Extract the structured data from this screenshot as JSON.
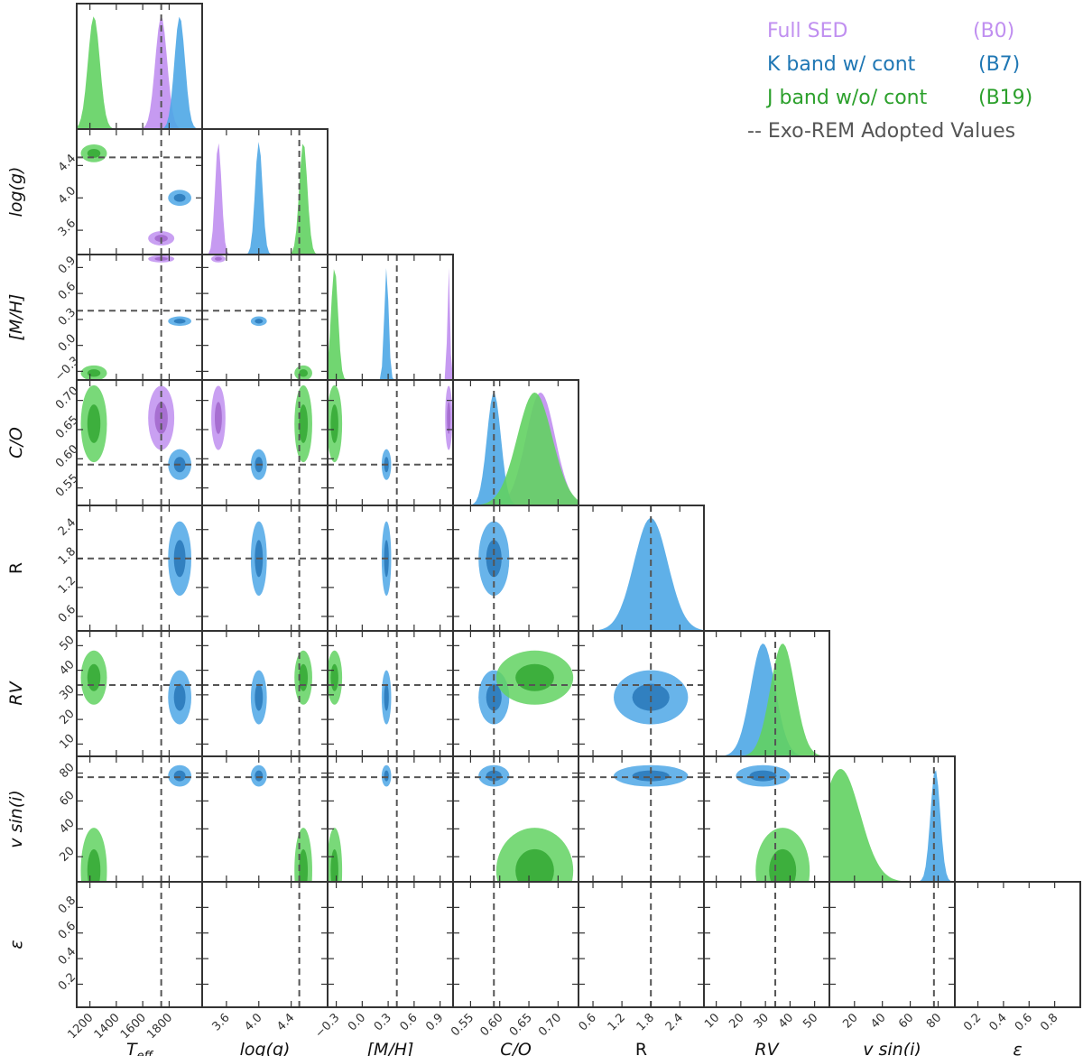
{
  "chart_data": {
    "type": "corner",
    "parameters": [
      {
        "key": "teff",
        "label": "T",
        "label_sub": "eff",
        "range": [
          1100,
          2050
        ],
        "ticks": [
          1200,
          1400,
          1600,
          1800
        ],
        "tick_labels": [
          "1200",
          "1400",
          "1600",
          "1800"
        ],
        "adopted": 1740,
        "y_ticks": [],
        "y_tick_labels": []
      },
      {
        "key": "logg",
        "label": "log(g)",
        "range": [
          3.3,
          4.85
        ],
        "ticks": [
          3.6,
          4.0,
          4.4
        ],
        "tick_labels": [
          "3.6",
          "4.0",
          "4.4"
        ],
        "adopted": 4.5,
        "y_ticks": [
          3.6,
          4.0,
          4.4
        ],
        "y_tick_labels": [
          "3.6",
          "4.0",
          "4.4"
        ]
      },
      {
        "key": "mh",
        "label": "[M/H]",
        "range": [
          -0.4,
          1.05
        ],
        "ticks": [
          -0.3,
          0.0,
          0.3,
          0.6,
          0.9
        ],
        "tick_labels": [
          "−0.3",
          "0.0",
          "0.3",
          "0.6",
          "0.9"
        ],
        "adopted": 0.4,
        "y_ticks": [
          -0.3,
          0.0,
          0.3,
          0.6,
          0.9
        ],
        "y_tick_labels": [
          "−0.3",
          "0.0",
          "0.3",
          "0.6",
          "0.9"
        ]
      },
      {
        "key": "co",
        "label": "C/O",
        "range": [
          0.52,
          0.735
        ],
        "ticks": [
          0.55,
          0.6,
          0.65,
          0.7
        ],
        "tick_labels": [
          "0.55",
          "0.60",
          "0.65",
          "0.70"
        ],
        "adopted": 0.59,
        "y_ticks": [
          0.55,
          0.6,
          0.65,
          0.7
        ],
        "y_tick_labels": [
          "0.55",
          "0.60",
          "0.65",
          "0.70"
        ]
      },
      {
        "key": "r",
        "label": "R",
        "range": [
          0.3,
          2.9
        ],
        "ticks": [
          0.6,
          1.2,
          1.8,
          2.4
        ],
        "tick_labels": [
          "0.6",
          "1.2",
          "1.8",
          "2.4"
        ],
        "adopted": 1.8,
        "y_ticks": [
          0.6,
          1.2,
          1.8,
          2.4
        ],
        "y_tick_labels": [
          "0.6",
          "1.2",
          "1.8",
          "2.4"
        ]
      },
      {
        "key": "rv",
        "label": "RV",
        "range": [
          5,
          56
        ],
        "ticks": [
          10,
          20,
          30,
          40,
          50
        ],
        "tick_labels": [
          "10",
          "20",
          "30",
          "40",
          "50"
        ],
        "adopted": 34,
        "y_ticks": [
          10,
          20,
          30,
          40,
          50
        ],
        "y_tick_labels": [
          "10",
          "20",
          "30",
          "40",
          "50"
        ]
      },
      {
        "key": "vsini",
        "label": "v sin(i)",
        "range": [
          2,
          92
        ],
        "ticks": [
          20,
          40,
          60,
          80
        ],
        "tick_labels": [
          "20",
          "40",
          "60",
          "80"
        ],
        "adopted": 77,
        "y_ticks": [
          20,
          40,
          60,
          80
        ],
        "y_tick_labels": [
          "20",
          "40",
          "60",
          "80"
        ]
      },
      {
        "key": "eps",
        "label": "ε",
        "range": [
          0.02,
          1.0
        ],
        "ticks": [
          0.2,
          0.4,
          0.6,
          0.8
        ],
        "tick_labels": [
          "0.2",
          "0.4",
          "0.6",
          "0.8"
        ],
        "adopted": null,
        "y_ticks": [
          0.2,
          0.4,
          0.6,
          0.8
        ],
        "y_tick_labels": [
          "0.2",
          "0.4",
          "0.6",
          "0.8"
        ]
      }
    ],
    "series": [
      {
        "name": "Full SED",
        "code": "(B0)",
        "color": "#c08ff0",
        "line_color": "#9b5fc6",
        "peaks": {
          "teff": 1740,
          "logg": 3.5,
          "mh": 1.0,
          "co": 0.67
        },
        "widths": {
          "teff": 45,
          "logg": 0.04,
          "mh": 0.015,
          "co": 0.025
        }
      },
      {
        "name": "K band w/ cont",
        "code": "(B7)",
        "color": "#4ea7e6",
        "line_color": "#1f6fb2",
        "peaks": {
          "teff": 1880,
          "logg": 4.0,
          "mh": 0.28,
          "co": 0.59,
          "r": 1.8,
          "rv": 29,
          "vsini": 78
        },
        "widths": {
          "teff": 40,
          "logg": 0.045,
          "mh": 0.025,
          "co": 0.012,
          "r": 0.35,
          "rv": 5,
          "vsini": 3.5
        }
      },
      {
        "name": "J band w/o/ cont",
        "code": "(B19)",
        "color": "#62d262",
        "line_color": "#2aa02a",
        "peaks": {
          "teff": 1230,
          "logg": 4.55,
          "mh": -0.32,
          "co": 0.66,
          "rv": 37,
          "vsini": 10
        },
        "widths": {
          "teff": 45,
          "logg": 0.05,
          "mh": 0.04,
          "co": 0.03,
          "rv": 5,
          "vsini": 14
        }
      }
    ],
    "reference": {
      "name": "-- Exo-REM Adopted Values",
      "color": "#555555",
      "style": "dashed"
    },
    "legend_position": "top-right"
  },
  "legend": {
    "items": [
      {
        "label": "Full SED",
        "code": "(B0)",
        "color": "#c08ff0"
      },
      {
        "label": "K band w/ cont",
        "code": "(B7)",
        "color": "#1f77b4"
      },
      {
        "label": "J band w/o/ cont",
        "code": "(B19)",
        "color": "#2ca02c"
      }
    ],
    "reference": "-- Exo-REM Adopted Values",
    "reference_color": "#555555"
  }
}
